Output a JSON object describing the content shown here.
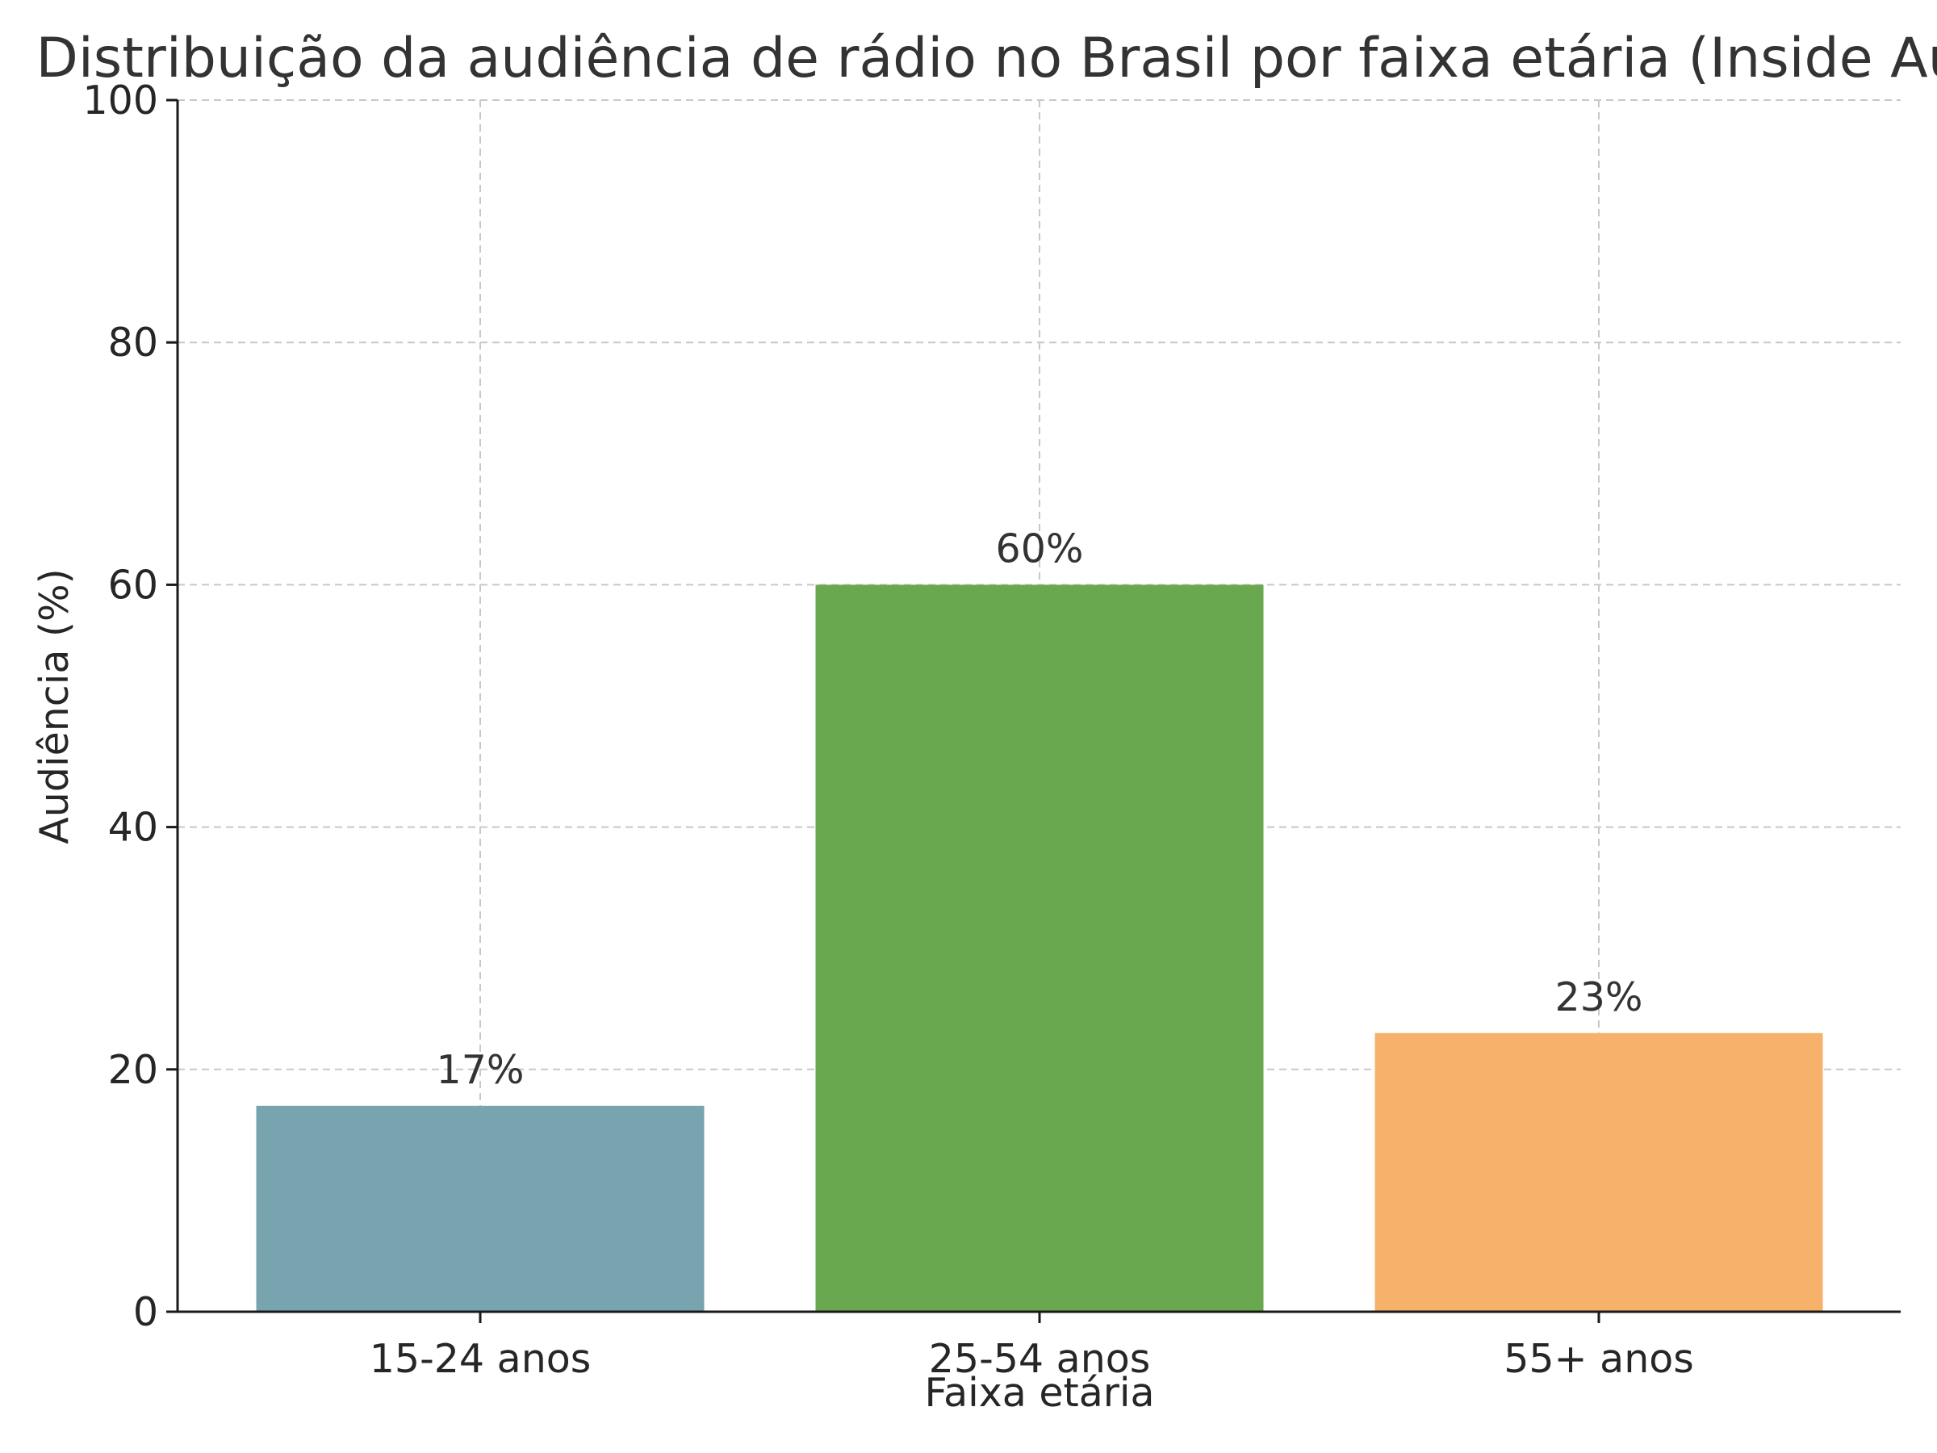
{
  "chart_data": {
    "type": "bar",
    "title": "Distribuição da audiência de rádio no Brasil por faixa etária (Inside Audio",
    "xlabel": "Faixa etária",
    "ylabel": "Audiência (%)",
    "categories": [
      "15-24 anos",
      "25-54 anos",
      "55+ anos"
    ],
    "values": [
      17,
      60,
      23
    ],
    "data_labels": [
      "17%",
      "60%",
      "23%"
    ],
    "colors": [
      "#78a4b0",
      "#6aa84f",
      "#f6b26b"
    ],
    "ylim": [
      0,
      100
    ],
    "yticks": [
      0,
      20,
      40,
      60,
      80,
      100
    ],
    "grid": true
  }
}
